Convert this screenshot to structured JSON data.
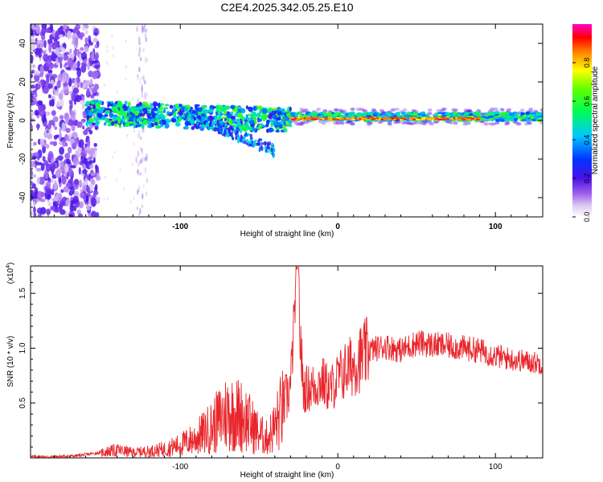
{
  "title": "C2E4.2025.342.05.25.E10",
  "chart_data": [
    {
      "type": "heatmap",
      "xlabel": "Height of straight line (km)",
      "ylabel": "Frequency (Hz)",
      "xlim": [
        -195,
        130
      ],
      "ylim": [
        -50,
        50
      ],
      "xticks": [
        -100,
        0,
        100
      ],
      "yticks": [
        -40,
        -20,
        0,
        20,
        40
      ],
      "colorbar": {
        "label": "Normalized spectral amplitude",
        "range": [
          0,
          1
        ],
        "ticks": [
          "0.0",
          "0.2",
          "0.4",
          "0.6",
          "0.8"
        ]
      },
      "features": {
        "noise_band_x": [
          -195,
          -152
        ],
        "main_band_center_hz": 2,
        "strong_tone_x_range": [
          -30,
          90
        ],
        "descending_branch": {
          "x": [
            -100,
            -40
          ],
          "y_hz": [
            5,
            -16
          ]
        }
      }
    },
    {
      "type": "line",
      "xlabel": "Height of straight line (km)",
      "ylabel": "SNR (10 * v/v)",
      "scale_label": "(x10",
      "scale_exp": "4",
      "xlim": [
        -195,
        130
      ],
      "ylim": [
        0,
        1.75
      ],
      "xticks": [
        -100,
        0,
        100
      ],
      "yticks": [
        "0.5",
        "1.0",
        "1.5"
      ],
      "series": [
        {
          "name": "SNR",
          "color": "#e8262b",
          "x": [
            -195,
            -180,
            -165,
            -150,
            -140,
            -130,
            -120,
            -110,
            -100,
            -90,
            -80,
            -70,
            -60,
            -50,
            -45,
            -40,
            -35,
            -30,
            -26,
            -22,
            -15,
            -10,
            -5,
            0,
            5,
            10,
            20,
            30,
            40,
            50,
            60,
            70,
            80,
            90,
            100,
            110,
            120,
            130
          ],
          "values": [
            0.01,
            0.01,
            0.02,
            0.05,
            0.07,
            0.05,
            0.06,
            0.08,
            0.12,
            0.18,
            0.28,
            0.42,
            0.38,
            0.22,
            0.18,
            0.28,
            0.45,
            0.65,
            1.72,
            0.62,
            0.65,
            0.7,
            0.62,
            0.72,
            0.8,
            0.85,
            0.98,
            1.02,
            0.98,
            1.05,
            1.03,
            1.02,
            1.0,
            0.98,
            0.93,
            0.9,
            0.88,
            0.86
          ]
        }
      ]
    }
  ]
}
